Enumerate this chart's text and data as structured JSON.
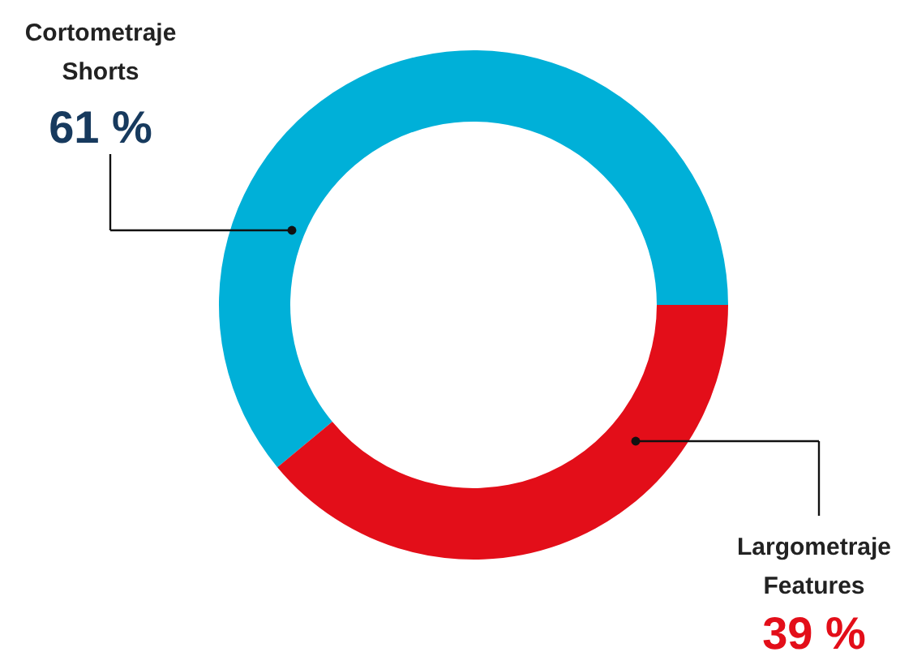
{
  "chart_data": {
    "type": "donut",
    "categories": [
      "Cortometraje\nShorts",
      "Largometraje\nFeatures"
    ],
    "values": [
      61,
      39
    ],
    "colors": [
      "#00b0d8",
      "#e30e19"
    ],
    "value_labels": [
      "61 %",
      "39 %"
    ]
  }
}
